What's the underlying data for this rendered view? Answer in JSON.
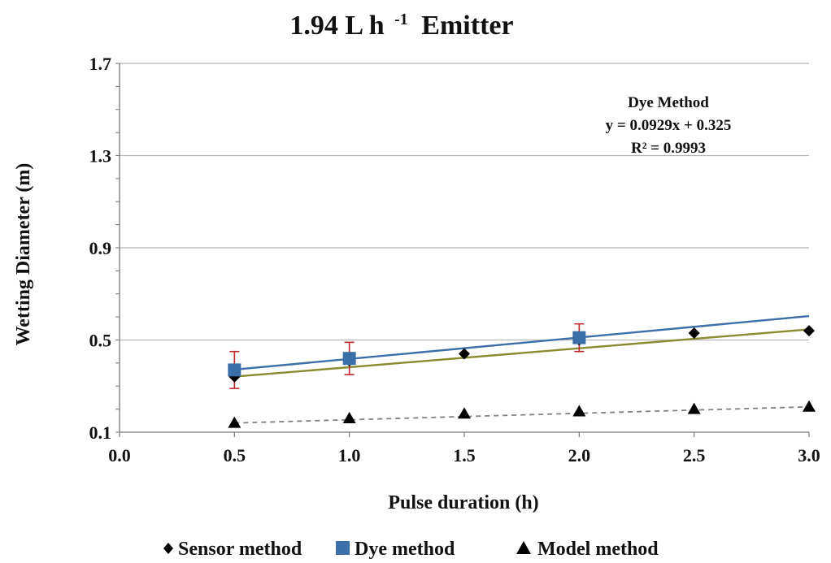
{
  "chart_data": {
    "type": "scatter",
    "title": "1.94 L h",
    "title_superscript": "-1",
    "title_suffix": "Emitter",
    "xlabel": "Pulse duration (h)",
    "ylabel": "Wetting Diameter (m)",
    "xlim": [
      0.0,
      3.0
    ],
    "ylim": [
      0.1,
      1.7
    ],
    "x_ticks": [
      "0.0",
      "0.5",
      "1.0",
      "1.5",
      "2.0",
      "2.5",
      "3.0"
    ],
    "y_ticks": [
      "0.1",
      "0.5",
      "0.9",
      "1.3",
      "1.7"
    ],
    "grid": "horizontal",
    "legend_position": "bottom",
    "series": [
      {
        "name": "Sensor method",
        "marker": "diamond",
        "color": "#000000",
        "x": [
          0.5,
          1.0,
          1.5,
          2.0,
          2.5,
          3.0
        ],
        "y": [
          0.34,
          0.41,
          0.44,
          0.5,
          0.53,
          0.54
        ],
        "trendline": {
          "slope": 0.082,
          "intercept": 0.3,
          "color": "#8a8a30",
          "style": "solid"
        }
      },
      {
        "name": "Dye method",
        "marker": "square",
        "color": "#3b6fa8",
        "x": [
          0.5,
          1.0,
          2.0
        ],
        "y": [
          0.37,
          0.42,
          0.51
        ],
        "error": [
          0.08,
          0.07,
          0.06
        ],
        "error_color": "#c0262d",
        "trendline": {
          "slope": 0.0929,
          "intercept": 0.325,
          "color": "#3b6fa8",
          "style": "solid"
        }
      },
      {
        "name": "Model method",
        "marker": "triangle",
        "color": "#000000",
        "x": [
          0.5,
          1.0,
          1.5,
          2.0,
          2.5,
          3.0
        ],
        "y": [
          0.14,
          0.16,
          0.18,
          0.19,
          0.2,
          0.21
        ],
        "trendline": {
          "slope": 0.028,
          "intercept": 0.126,
          "color": "#808080",
          "style": "dashed"
        }
      }
    ],
    "annotation": {
      "lines": [
        "Dye Method",
        "y = 0.0929x + 0.325",
        "R² = 0.9993"
      ]
    }
  }
}
